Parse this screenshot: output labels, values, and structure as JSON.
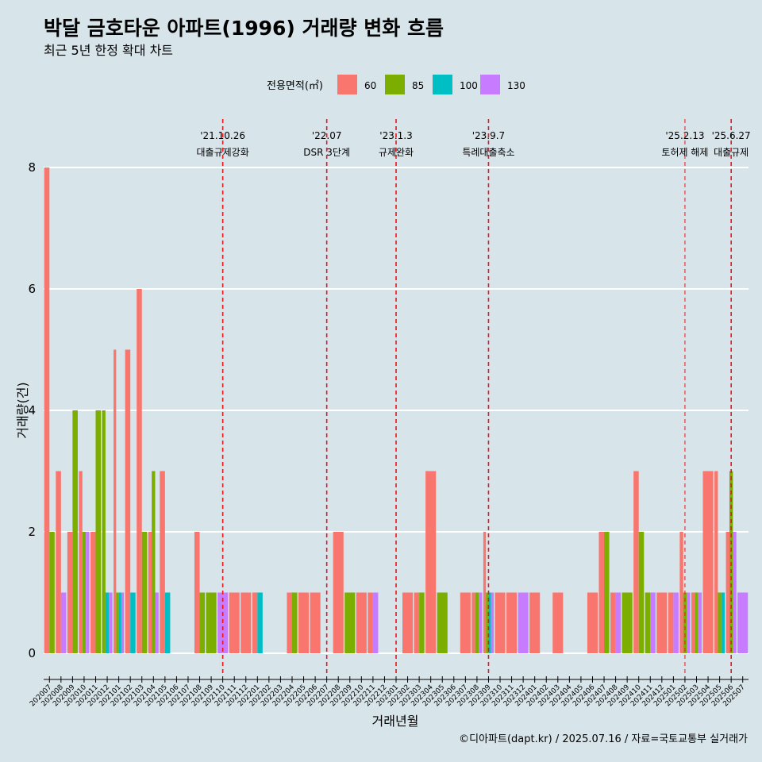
{
  "chart_data": {
    "type": "bar",
    "title": "박달 금호타운 아파트(1996) 거래량 변화 흐름",
    "subtitle": "최근 5년 한정 확대 차트",
    "xlabel": "거래년월",
    "ylabel": "거래량(건)",
    "caption": "©디아파트(dapt.kr) / 2025.07.16 / 자료=국토교통부 실거래가",
    "legend": {
      "title": "전용면적(㎡)",
      "position": "top",
      "items": [
        {
          "name": "60",
          "color": "#f8766d"
        },
        {
          "name": "85",
          "color": "#7cae00"
        },
        {
          "name": "100",
          "color": "#00bfc4"
        },
        {
          "name": "130",
          "color": "#c77cff"
        }
      ]
    },
    "ylim": [
      0,
      8
    ],
    "yticks": [
      "0",
      "2",
      "4",
      "6",
      "8"
    ],
    "categories": [
      "202007",
      "202008",
      "202009",
      "202010",
      "202011",
      "202012",
      "202101",
      "202102",
      "202103",
      "202104",
      "202105",
      "202106",
      "202107",
      "202108",
      "202109",
      "202110",
      "202111",
      "202112",
      "202201",
      "202202",
      "202203",
      "202204",
      "202205",
      "202206",
      "202207",
      "202208",
      "202209",
      "202210",
      "202211",
      "202212",
      "202301",
      "202302",
      "202303",
      "202304",
      "202305",
      "202306",
      "202307",
      "202308",
      "202309",
      "202310",
      "202311",
      "202312",
      "202401",
      "202402",
      "202403",
      "202404",
      "202405",
      "202406",
      "202407",
      "202408",
      "202409",
      "202410",
      "202411",
      "202412",
      "202501",
      "202502",
      "202503",
      "202504",
      "202505",
      "202506",
      "202507"
    ],
    "series": [
      {
        "name": "60",
        "values": [
          8,
          3,
          2,
          3,
          2,
          0,
          5,
          5,
          6,
          2,
          3,
          0,
          0,
          2,
          0,
          0,
          1,
          1,
          1,
          0,
          0,
          1,
          1,
          1,
          0,
          2,
          0,
          1,
          1,
          0,
          0,
          1,
          1,
          3,
          0,
          0,
          1,
          1,
          2,
          1,
          1,
          0,
          1,
          0,
          1,
          0,
          0,
          1,
          2,
          1,
          0,
          3,
          0,
          1,
          1,
          2,
          1,
          3,
          3,
          2,
          0
        ]
      },
      {
        "name": "85",
        "values": [
          2,
          0,
          4,
          2,
          4,
          4,
          1,
          0,
          2,
          3,
          0,
          0,
          0,
          1,
          1,
          0,
          0,
          0,
          0,
          0,
          0,
          1,
          0,
          0,
          0,
          0,
          1,
          0,
          0,
          0,
          0,
          0,
          1,
          0,
          1,
          0,
          0,
          1,
          1,
          0,
          0,
          0,
          0,
          0,
          0,
          0,
          0,
          0,
          2,
          0,
          1,
          2,
          1,
          0,
          0,
          1,
          1,
          0,
          1,
          3,
          0
        ]
      },
      {
        "name": "100",
        "values": [
          0,
          0,
          0,
          0,
          0,
          1,
          1,
          1,
          0,
          0,
          1,
          0,
          0,
          0,
          0,
          0,
          0,
          0,
          1,
          0,
          0,
          0,
          0,
          0,
          0,
          0,
          0,
          0,
          0,
          0,
          0,
          0,
          0,
          0,
          0,
          0,
          0,
          0,
          1,
          0,
          0,
          0,
          0,
          0,
          0,
          0,
          0,
          0,
          0,
          0,
          0,
          0,
          0,
          0,
          0,
          0,
          0,
          0,
          1,
          0,
          0
        ]
      },
      {
        "name": "130",
        "values": [
          0,
          1,
          0,
          2,
          0,
          1,
          1,
          0,
          0,
          1,
          0,
          0,
          0,
          0,
          0,
          1,
          0,
          0,
          0,
          0,
          0,
          0,
          0,
          0,
          0,
          0,
          0,
          0,
          1,
          0,
          0,
          0,
          0,
          0,
          0,
          0,
          0,
          1,
          1,
          0,
          0,
          1,
          0,
          0,
          0,
          0,
          0,
          0,
          0,
          1,
          0,
          0,
          1,
          0,
          1,
          1,
          1,
          0,
          0,
          2,
          1
        ]
      }
    ],
    "events": [
      {
        "date": "'21.10.26",
        "label": "대출규제강화",
        "at": "202110",
        "style": "dashed"
      },
      {
        "date": "'22.07",
        "label": "DSR 3단계",
        "at": "202207",
        "style": "dashed"
      },
      {
        "date": "'23.1.3",
        "label": "규제완화",
        "at": "202301",
        "style": "dashed"
      },
      {
        "date": "'23.9.7",
        "label": "특례대출축소",
        "at": "202309",
        "style": "dashed"
      },
      {
        "date": "'25.2.13",
        "label": "토허제 해제",
        "at": "202502",
        "style": "thin-dashed"
      },
      {
        "date": "'25.6.27",
        "label": "대출규제",
        "at": "202506",
        "style": "dashed"
      }
    ],
    "grid": "horizontal",
    "colors": {
      "background": "#d7e4ea",
      "grid": "#ffffff",
      "event_line": "#e8161b"
    }
  }
}
